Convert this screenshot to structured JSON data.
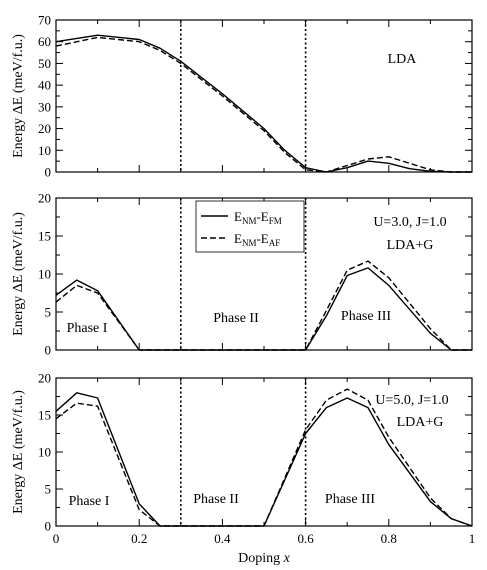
{
  "chart_data": [
    {
      "type": "line",
      "ylabel": "Energy ΔE (meV/f.u.)",
      "xlim": [
        0,
        1
      ],
      "ylim": [
        0,
        70
      ],
      "yticks": [
        0,
        10,
        20,
        30,
        40,
        50,
        60,
        70
      ],
      "ytick_labels": [
        "0",
        "10",
        "20",
        "30",
        "40",
        "50",
        "60",
        "70"
      ],
      "xtick_labels_shown": false,
      "vlines": [
        0.3,
        0.6
      ],
      "annotations": [
        {
          "text": "LDA",
          "position": "top-right"
        }
      ],
      "series": [
        {
          "style": "solid",
          "x": [
            0,
            0.1,
            0.2,
            0.25,
            0.3,
            0.4,
            0.5,
            0.55,
            0.6,
            0.65,
            0.7,
            0.75,
            0.8,
            0.85,
            0.9,
            0.95,
            1.0
          ],
          "y": [
            60,
            63,
            61,
            57,
            51,
            36,
            20,
            10,
            2,
            0,
            2,
            5,
            4,
            1.5,
            0.3,
            0,
            0
          ]
        },
        {
          "style": "dashed",
          "x": [
            0,
            0.1,
            0.2,
            0.25,
            0.3,
            0.4,
            0.5,
            0.55,
            0.6,
            0.65,
            0.7,
            0.75,
            0.8,
            0.85,
            0.9,
            0.95,
            1.0
          ],
          "y": [
            58,
            62,
            60,
            56,
            50,
            35,
            19,
            9,
            1,
            0,
            3,
            6,
            7,
            4,
            1,
            0,
            0
          ]
        }
      ]
    },
    {
      "type": "line",
      "ylabel": "Energy ΔE (meV/f.u.)",
      "xlim": [
        0,
        1
      ],
      "ylim": [
        0,
        20
      ],
      "yticks": [
        0,
        5,
        10,
        15,
        20
      ],
      "ytick_labels": [
        "0",
        "5",
        "10",
        "15",
        "20"
      ],
      "xtick_labels_shown": false,
      "vlines": [
        0.3,
        0.6
      ],
      "annotations": [
        {
          "text": "U=3.0, J=1.0",
          "position": "top-right"
        },
        {
          "text": "LDA+G",
          "position": "top-right"
        },
        {
          "text": "Phase I",
          "position": "bottom-left"
        },
        {
          "text": "Phase II",
          "position": "bottom-center"
        },
        {
          "text": "Phase III",
          "position": "bottom-right"
        }
      ],
      "legend": {
        "placement": "top-center",
        "entries": [
          {
            "style": "solid",
            "main": "E",
            "sub1": "NM",
            "mid": "-E",
            "sub2": "FM"
          },
          {
            "style": "dashed",
            "main": "E",
            "sub1": "NM",
            "mid": "-E",
            "sub2": "AF"
          }
        ]
      },
      "series": [
        {
          "style": "solid",
          "x": [
            0,
            0.05,
            0.1,
            0.2,
            0.3,
            0.4,
            0.5,
            0.6,
            0.65,
            0.7,
            0.75,
            0.8,
            0.9,
            0.95,
            1.0
          ],
          "y": [
            7.2,
            9.2,
            7.8,
            0,
            0,
            0,
            0,
            0,
            4.5,
            9.8,
            10.8,
            8.5,
            2.2,
            0,
            0
          ]
        },
        {
          "style": "dashed",
          "x": [
            0,
            0.05,
            0.1,
            0.2,
            0.3,
            0.4,
            0.5,
            0.6,
            0.65,
            0.7,
            0.75,
            0.8,
            0.9,
            0.95,
            1.0
          ],
          "y": [
            6.3,
            8.5,
            7.5,
            0,
            0,
            0,
            0,
            0,
            5.2,
            10.5,
            11.7,
            9.5,
            2.8,
            0,
            0
          ]
        }
      ]
    },
    {
      "type": "line",
      "xlabel": "Doping x",
      "ylabel": "Energy ΔE (meV/f.u.)",
      "xlim": [
        0,
        1
      ],
      "ylim": [
        0,
        20
      ],
      "yticks": [
        0,
        5,
        10,
        15,
        20
      ],
      "ytick_labels": [
        "0",
        "5",
        "10",
        "15",
        "20"
      ],
      "xticks": [
        0,
        0.2,
        0.4,
        0.6,
        0.8,
        1
      ],
      "xtick_labels": [
        "0",
        "0.2",
        "0.4",
        "0.6",
        "0.8",
        "1"
      ],
      "vlines": [
        0.3,
        0.6
      ],
      "annotations": [
        {
          "text": "U=5.0, J=1.0",
          "position": "top-right"
        },
        {
          "text": "LDA+G",
          "position": "top-right"
        },
        {
          "text": "Phase I",
          "position": "bottom-left"
        },
        {
          "text": "Phase II",
          "position": "bottom-center"
        },
        {
          "text": "Phase III",
          "position": "bottom-right"
        }
      ],
      "series": [
        {
          "style": "solid",
          "x": [
            0,
            0.05,
            0.1,
            0.2,
            0.25,
            0.3,
            0.4,
            0.5,
            0.6,
            0.65,
            0.7,
            0.75,
            0.8,
            0.9,
            0.95,
            1.0
          ],
          "y": [
            15.5,
            18,
            17.3,
            3,
            0,
            0,
            0,
            0,
            12.5,
            16,
            17.3,
            16,
            11,
            3.3,
            1,
            0
          ]
        },
        {
          "style": "dashed",
          "x": [
            0,
            0.05,
            0.1,
            0.2,
            0.25,
            0.3,
            0.4,
            0.5,
            0.6,
            0.65,
            0.7,
            0.75,
            0.8,
            0.9,
            0.95,
            1.0
          ],
          "y": [
            14.5,
            16.6,
            16.2,
            2.2,
            0,
            0,
            0,
            0,
            13,
            17,
            18.5,
            17,
            12,
            3.8,
            1,
            0
          ]
        }
      ]
    }
  ]
}
